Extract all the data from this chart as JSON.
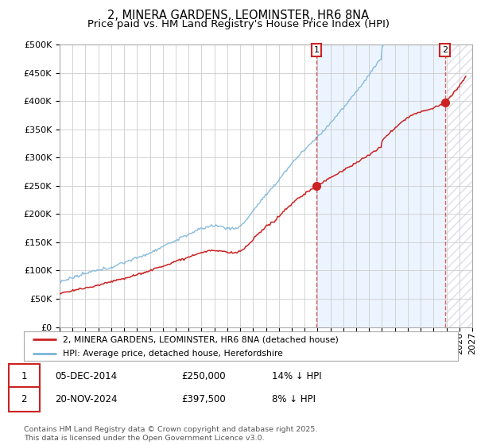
{
  "title": "2, MINERA GARDENS, LEOMINSTER, HR6 8NA",
  "subtitle": "Price paid vs. HM Land Registry's House Price Index (HPI)",
  "ylim": [
    0,
    500000
  ],
  "yticks": [
    0,
    50000,
    100000,
    150000,
    200000,
    250000,
    300000,
    350000,
    400000,
    450000,
    500000
  ],
  "xlim_start": 1995,
  "xlim_end": 2027,
  "hpi_color": "#7ab4d8",
  "price_color": "#cc2222",
  "marker1_date": 2014.92,
  "marker1_price": 250000,
  "marker1_label": "1",
  "marker2_date": 2024.88,
  "marker2_price": 397500,
  "marker2_label": "2",
  "legend_line1": "2, MINERA GARDENS, LEOMINSTER, HR6 8NA (detached house)",
  "legend_line2": "HPI: Average price, detached house, Herefordshire",
  "table_row1_num": "1",
  "table_row1_date": "05-DEC-2014",
  "table_row1_price": "£250,000",
  "table_row1_hpi": "14% ↓ HPI",
  "table_row2_num": "2",
  "table_row2_date": "20-NOV-2024",
  "table_row2_price": "£397,500",
  "table_row2_hpi": "8% ↓ HPI",
  "footer": "Contains HM Land Registry data © Crown copyright and database right 2025.\nThis data is licensed under the Open Government Licence v3.0.",
  "background_color": "#ffffff",
  "grid_color": "#cccccc",
  "title_fontsize": 10.5,
  "subtitle_fontsize": 9.5,
  "tick_fontsize": 8
}
